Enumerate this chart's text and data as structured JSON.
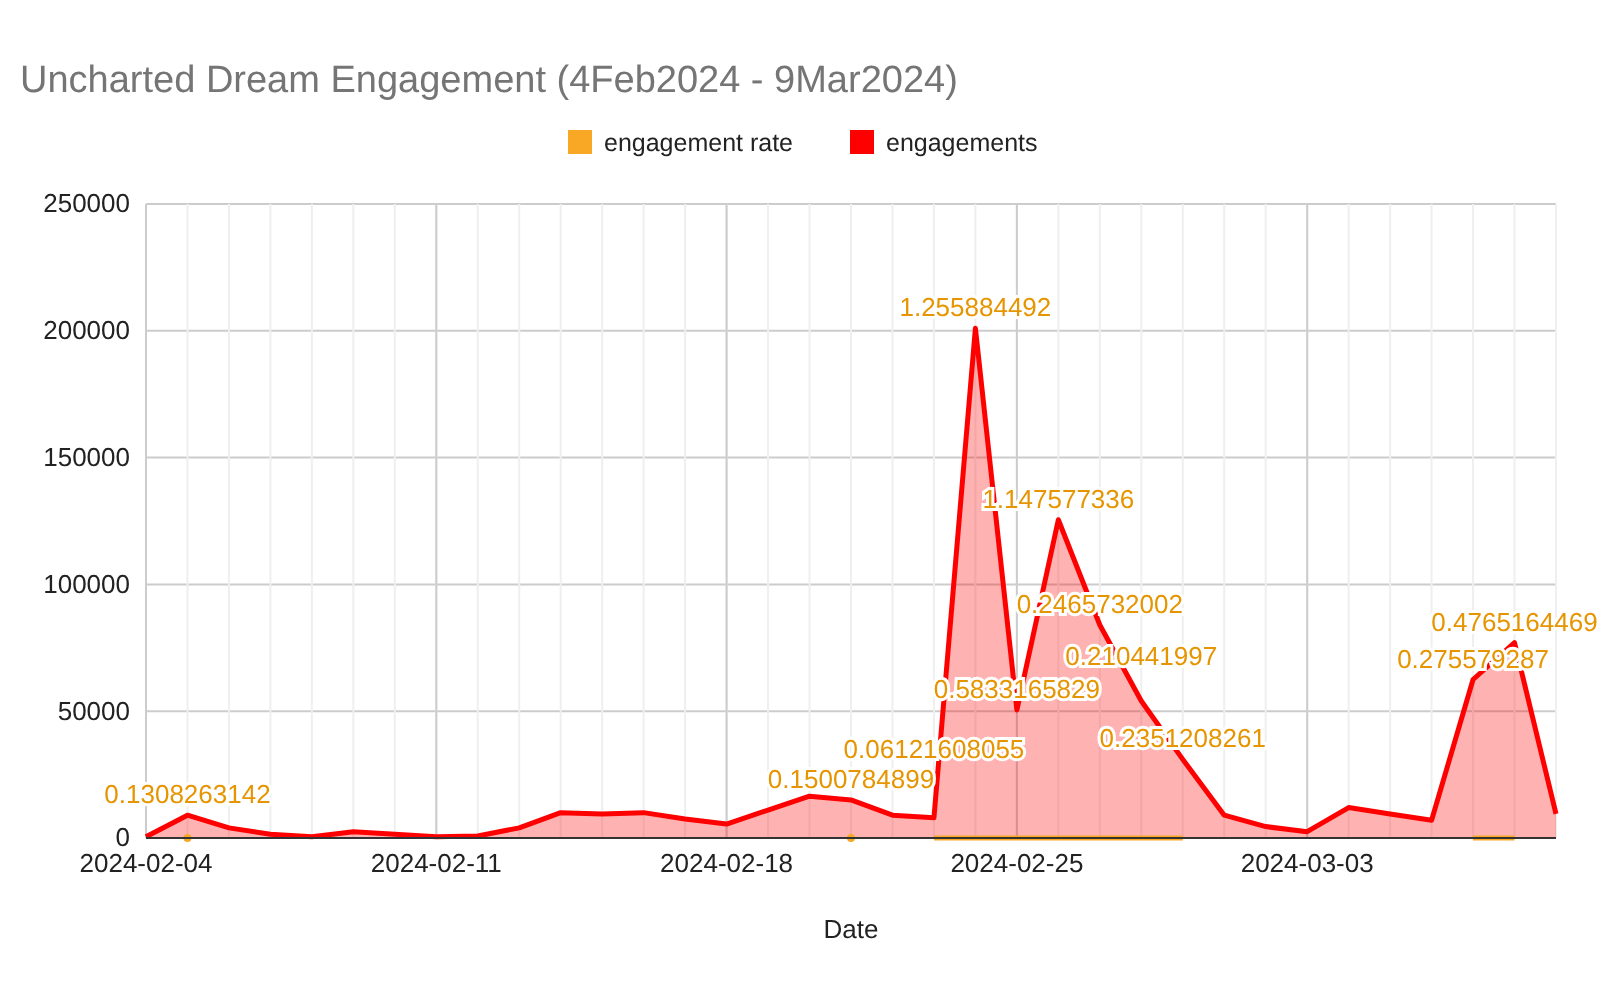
{
  "chart_data": {
    "type": "area",
    "title": "Uncharted Dream Engagement (4Feb2024 - 9Mar2024)",
    "xlabel": "Date",
    "legend": "top",
    "grid": true,
    "x": [
      "2024-02-04",
      "2024-02-05",
      "2024-02-06",
      "2024-02-07",
      "2024-02-08",
      "2024-02-09",
      "2024-02-10",
      "2024-02-11",
      "2024-02-12",
      "2024-02-13",
      "2024-02-14",
      "2024-02-15",
      "2024-02-16",
      "2024-02-17",
      "2024-02-18",
      "2024-02-19",
      "2024-02-20",
      "2024-02-21",
      "2024-02-22",
      "2024-02-23",
      "2024-02-24",
      "2024-02-25",
      "2024-02-26",
      "2024-02-27",
      "2024-02-28",
      "2024-02-29",
      "2024-03-01",
      "2024-03-02",
      "2024-03-03",
      "2024-03-04",
      "2024-03-05",
      "2024-03-06",
      "2024-03-07",
      "2024-03-08",
      "2024-03-09"
    ],
    "xlim": [
      "2024-02-04",
      "2024-03-09"
    ],
    "xticks": [
      "2024-02-04",
      "2024-02-11",
      "2024-02-18",
      "2024-02-25",
      "2024-03-03"
    ],
    "ylim": [
      0,
      250000
    ],
    "yticks": [
      0,
      50000,
      100000,
      150000,
      200000,
      250000
    ],
    "series": [
      {
        "name": "engagements",
        "color": "#ff0000",
        "values": [
          500,
          9000,
          4000,
          1500,
          500,
          2500,
          1500,
          500,
          800,
          4000,
          10000,
          9500,
          10000,
          7500,
          5500,
          11000,
          16500,
          15000,
          9000,
          8000,
          201000,
          50500,
          125500,
          84000,
          54000,
          31000,
          9000,
          4500,
          2500,
          12000,
          9500,
          7000,
          62500,
          77000,
          9500
        ]
      },
      {
        "name": "engagement rate",
        "type": "line",
        "color": "#f9a825",
        "values": [
          null,
          0.1308263142,
          null,
          null,
          null,
          null,
          null,
          null,
          null,
          null,
          null,
          null,
          null,
          null,
          null,
          null,
          null,
          0.1500784899,
          null,
          0.06121608055,
          1.255884492,
          0.5833165829,
          1.147577336,
          0.2465732002,
          0.210441997,
          0.2351208261,
          null,
          null,
          null,
          null,
          null,
          null,
          0.275579287,
          0.4765164469,
          null
        ]
      }
    ],
    "annotations": [
      {
        "text": "0.1308263142",
        "x": "2024-02-05",
        "y": 9000
      },
      {
        "text": "0.1500784899",
        "x": "2024-02-21",
        "y": 15000
      },
      {
        "text": "0.06121608055",
        "x": "2024-02-23",
        "y": 8000
      },
      {
        "text": "1.255884492",
        "x": "2024-02-24",
        "y": 201000
      },
      {
        "text": "0.5833165829",
        "x": "2024-02-25",
        "y": 50500
      },
      {
        "text": "1.147577336",
        "x": "2024-02-26",
        "y": 125500
      },
      {
        "text": "0.2465732002",
        "x": "2024-02-27",
        "y": 84000
      },
      {
        "text": "0.210441997",
        "x": "2024-02-28",
        "y": 54000
      },
      {
        "text": "0.2351208261",
        "x": "2024-02-29",
        "y": 31000
      },
      {
        "text": "0.275579287",
        "x": "2024-03-07",
        "y": 62500
      },
      {
        "text": "0.4765164469",
        "x": "2024-03-08",
        "y": 77000
      }
    ]
  }
}
